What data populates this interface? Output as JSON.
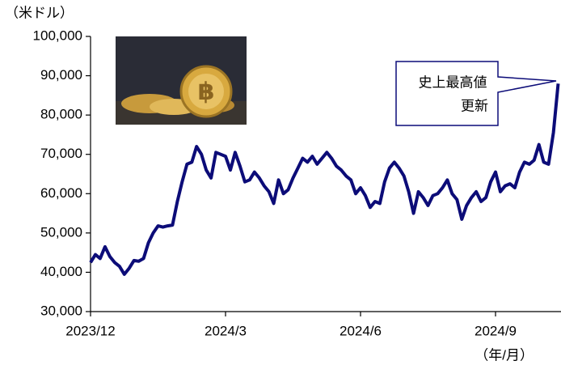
{
  "chart_data": {
    "type": "line",
    "y_axis_unit": "（米ドル）",
    "x_axis_unit": "（年/月）",
    "annotation": [
      "史上最高値",
      "更新"
    ],
    "categories": [
      "2023/12",
      null,
      null,
      null,
      null,
      null,
      null,
      null,
      null,
      null,
      null,
      null,
      null,
      null,
      null,
      null,
      null,
      null,
      null,
      null,
      null,
      null,
      null,
      null,
      null,
      null,
      null,
      null,
      "2024/3",
      null,
      null,
      null,
      null,
      null,
      null,
      null,
      null,
      null,
      null,
      null,
      null,
      null,
      null,
      null,
      null,
      null,
      null,
      null,
      null,
      null,
      null,
      null,
      null,
      null,
      null,
      null,
      "2024/6",
      null,
      null,
      null,
      null,
      null,
      null,
      null,
      null,
      null,
      null,
      null,
      null,
      null,
      null,
      null,
      null,
      null,
      null,
      null,
      null,
      null,
      null,
      null,
      null,
      null,
      null,
      null,
      "2024/9",
      null,
      null,
      null,
      null,
      null,
      null,
      null,
      null,
      null,
      null,
      null,
      null,
      null
    ],
    "series": [
      {
        "color": "#0c0c78",
        "values": [
          42500,
          44500,
          43500,
          46500,
          44000,
          42500,
          41500,
          39500,
          41000,
          43000,
          42800,
          43500,
          47500,
          50000,
          51800,
          51500,
          51800,
          52000,
          58000,
          63000,
          67500,
          68000,
          72000,
          70000,
          66000,
          64000,
          70500,
          70000,
          69500,
          66000,
          70500,
          67000,
          63000,
          63500,
          65500,
          64000,
          62000,
          60500,
          57500,
          63500,
          60000,
          61000,
          64000,
          66500,
          69000,
          68000,
          69500,
          67500,
          69000,
          70500,
          69000,
          67000,
          66000,
          64500,
          63500,
          60000,
          61500,
          59500,
          56500,
          58000,
          57500,
          63000,
          66500,
          68000,
          66500,
          64500,
          60500,
          55000,
          60500,
          59000,
          57000,
          59500,
          60000,
          61500,
          63500,
          60000,
          58500,
          53500,
          57000,
          59000,
          60500,
          58000,
          59000,
          63000,
          65500,
          60500,
          62000,
          62500,
          61500,
          65500,
          68000,
          67500,
          68500,
          72500,
          68000,
          67500,
          75500,
          88000
        ]
      }
    ],
    "ylim": [
      30000,
      100000
    ],
    "yticks": [
      {
        "value": 30000,
        "label": "30,000"
      },
      {
        "value": 40000,
        "label": "40,000"
      },
      {
        "value": 50000,
        "label": "50,000"
      },
      {
        "value": 60000,
        "label": "60,000"
      },
      {
        "value": 70000,
        "label": "70,000"
      },
      {
        "value": 80000,
        "label": "80,000"
      },
      {
        "value": 90000,
        "label": "90,000"
      },
      {
        "value": 100000,
        "label": "100,000"
      }
    ],
    "grid": false
  }
}
